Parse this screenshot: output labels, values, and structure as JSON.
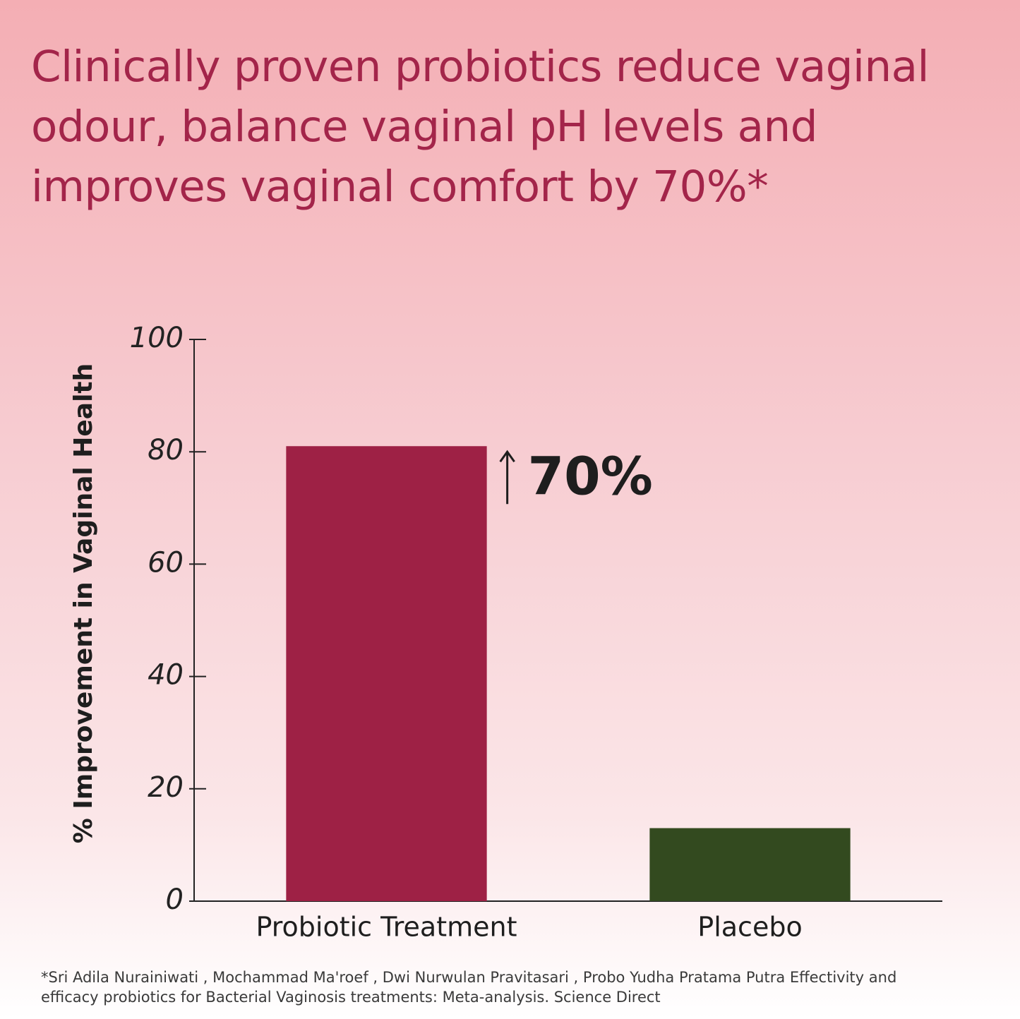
{
  "chart_data": {
    "type": "bar",
    "title": "Clinically proven probiotics reduce vaginal odour, balance vaginal pH levels and improves vaginal comfort by 70%*",
    "y_label": "% Improvement in Vaginal Health",
    "categories": [
      "Probiotic Treatment",
      "Placebo"
    ],
    "values": [
      81,
      13
    ],
    "colors": [
      "#9e2145",
      "#334a1f"
    ],
    "ylim": [
      0,
      100
    ],
    "yticks": [
      0,
      20,
      40,
      60,
      80,
      100
    ],
    "annotation": "70%",
    "footnote": "*Sri Adila Nurainiwati , Mochammad Ma'roef , Dwi Nurwulan Pravitasari , Probo Yudha Pratama Putra Effectivity and efficacy probiotics for Bacterial Vaginosis treatments: Meta-analysis. Science Direct"
  }
}
